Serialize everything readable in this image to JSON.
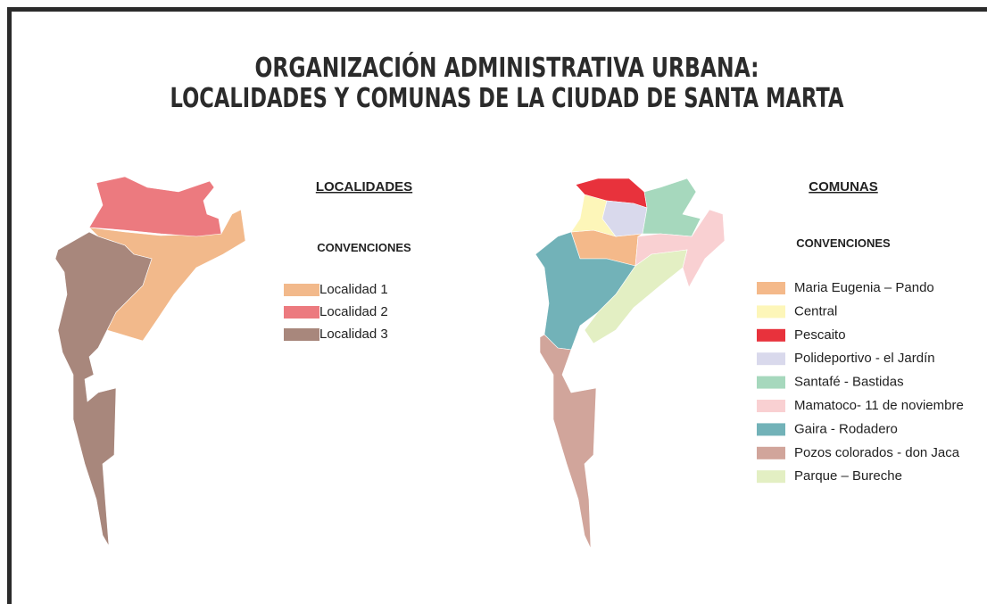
{
  "title": {
    "lines": [
      "ORGANIZACIÓN ADMINISTRATIVA URBANA:",
      "LOCALIDADES Y COMUNAS DE LA CIUDAD DE SANTA MARTA"
    ]
  },
  "localidades": {
    "heading": "LOCALIDADES",
    "conventions": "CONVENCIONES",
    "items": [
      {
        "label": "Localidad 1",
        "color": "#f2b98b"
      },
      {
        "label": "Localidad 2",
        "color": "#ec7a7f"
      },
      {
        "label": "Localidad 3",
        "color": "#a8877c"
      }
    ]
  },
  "comunas": {
    "heading": "COMUNAS",
    "conventions": "CONVENCIONES",
    "items": [
      {
        "label": "Maria Eugenia – Pando",
        "color": "#f4b98a"
      },
      {
        "label": "Central",
        "color": "#fdf6b9"
      },
      {
        "label": "Pescaito",
        "color": "#e8323c"
      },
      {
        "label": "Polideportivo - el Jardín",
        "color": "#d9d9ec"
      },
      {
        "label": "Santafé - Bastidas",
        "color": "#a6d8bd"
      },
      {
        "label": "Mamatoco- 11 de noviembre",
        "color": "#f9d0d2"
      },
      {
        "label": "Gaira - Rodadero",
        "color": "#72b2b8"
      },
      {
        "label": "Pozos colorados - don Jaca",
        "color": "#d1a59b"
      },
      {
        "label": "Parque – Bureche",
        "color": "#e3efc3"
      }
    ]
  }
}
